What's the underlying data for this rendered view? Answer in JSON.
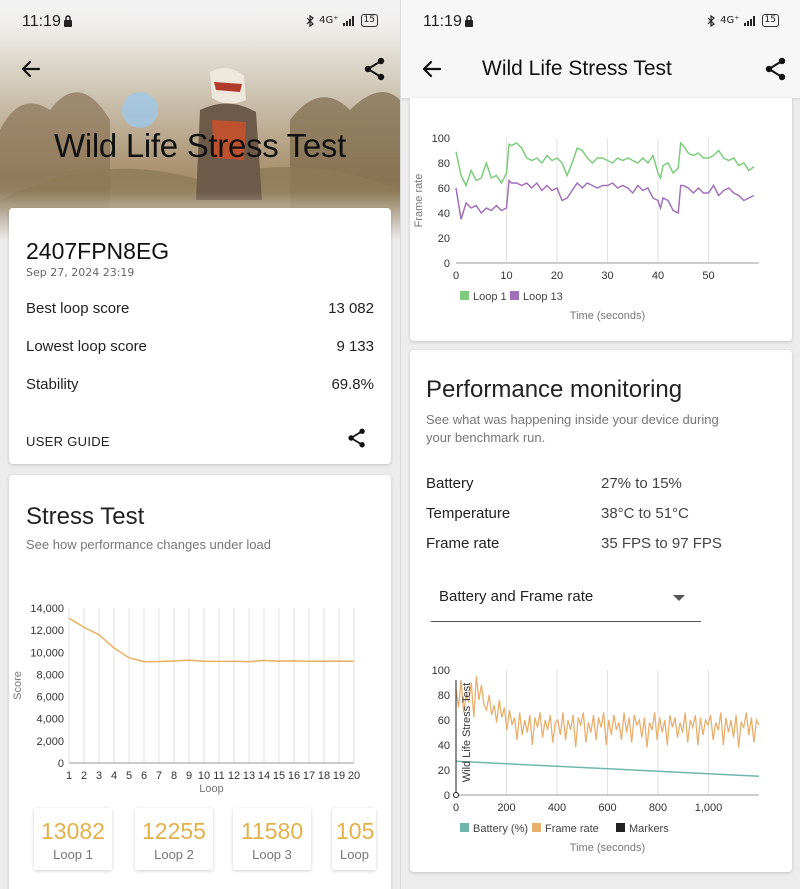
{
  "status": {
    "time": "11:19",
    "network": "4G⁺",
    "battery": "15"
  },
  "left": {
    "hero_title": "Wild Life Stress Test",
    "summary": {
      "device": "2407FPN8EG",
      "date": "Sep 27, 2024 23:19",
      "rows": [
        {
          "label": "Best loop score",
          "value": "13 082"
        },
        {
          "label": "Lowest loop score",
          "value": "9 133"
        },
        {
          "label": "Stability",
          "value": "69.8%"
        }
      ],
      "user_guide": "USER GUIDE"
    },
    "stress": {
      "title": "Stress Test",
      "subtitle": "See how performance changes under load"
    },
    "loops": [
      {
        "value": "13082",
        "label": "Loop 1"
      },
      {
        "value": "12255",
        "label": "Loop 2"
      },
      {
        "value": "11580",
        "label": "Loop 3"
      },
      {
        "value": "105",
        "label": "Loop"
      }
    ]
  },
  "right": {
    "app_title": "Wild Life Stress Test",
    "perf": {
      "title": "Performance monitoring",
      "subtitle_1": "See what was happening inside your device during",
      "subtitle_2": "your benchmark run.",
      "rows": [
        {
          "label": "Battery",
          "value": "27% to 15%"
        },
        {
          "label": "Temperature",
          "value": "38°C to 51°C"
        },
        {
          "label": "Frame rate",
          "value": "35 FPS to 97 FPS"
        }
      ],
      "dropdown": "Battery and Frame rate"
    }
  },
  "colors": {
    "score_line": "#e8b46a",
    "loop1": "#7dcb7d",
    "loop13": "#a070b8",
    "battery": "#6fb7ad",
    "framerate": "#e8b06e",
    "markers": "#222222",
    "loop_value": "#e4b04a"
  },
  "chart_data": [
    {
      "type": "line",
      "ylabel": "Score",
      "xlabel": "Loop",
      "x": [
        1,
        2,
        3,
        4,
        5,
        6,
        7,
        8,
        9,
        10,
        11,
        12,
        13,
        14,
        15,
        16,
        17,
        18,
        19,
        20
      ],
      "y_ticks": [
        "0",
        "2,000",
        "4,000",
        "6,000",
        "8,000",
        "10,000",
        "12,000",
        "14,000"
      ],
      "ylim": [
        0,
        14000
      ],
      "series": [
        {
          "values": [
            13082,
            12255,
            11580,
            10400,
            9500,
            9150,
            9160,
            9220,
            9290,
            9200,
            9180,
            9190,
            9150,
            9260,
            9200,
            9230,
            9190,
            9200,
            9210,
            9190
          ]
        }
      ],
      "grid": "vertical"
    },
    {
      "type": "line",
      "ylabel": "Frame rate",
      "xlabel": "Time (seconds)",
      "x_ticks": [
        "0",
        "10",
        "20",
        "30",
        "40",
        "50"
      ],
      "y_ticks": [
        "0",
        "20",
        "40",
        "60",
        "80",
        "100"
      ],
      "xlim": [
        0,
        60
      ],
      "ylim": [
        0,
        100
      ],
      "legend": "bottom-left",
      "series": [
        {
          "name": "Loop 1",
          "x": [
            0,
            1,
            2,
            3,
            4,
            5,
            6,
            7,
            8,
            9,
            10,
            10.5,
            11,
            12,
            13,
            14,
            15,
            16,
            17,
            18,
            19,
            20,
            21,
            22,
            23,
            24,
            25,
            26,
            27,
            28,
            29,
            30,
            31,
            32,
            33,
            34,
            35,
            36,
            37,
            38,
            39,
            40,
            40.5,
            41,
            42,
            43,
            44,
            44.5,
            45,
            46,
            47,
            48,
            49,
            50,
            51,
            52,
            53,
            54,
            55,
            56,
            57,
            58,
            59
          ],
          "values": [
            89,
            70,
            62,
            74,
            66,
            68,
            80,
            68,
            70,
            64,
            72,
            95,
            94,
            96,
            92,
            84,
            82,
            84,
            80,
            86,
            82,
            84,
            80,
            70,
            80,
            92,
            90,
            84,
            80,
            84,
            84,
            82,
            80,
            84,
            82,
            84,
            82,
            80,
            84,
            80,
            86,
            72,
            68,
            78,
            80,
            72,
            76,
            96,
            94,
            88,
            86,
            88,
            84,
            84,
            86,
            90,
            84,
            82,
            84,
            78,
            80,
            74,
            77
          ]
        },
        {
          "name": "Loop 13",
          "x": [
            0,
            1,
            2,
            3,
            4,
            5,
            6,
            7,
            8,
            9,
            10,
            10.5,
            11,
            12,
            13,
            14,
            15,
            16,
            17,
            18,
            19,
            20,
            21,
            22,
            23,
            24,
            25,
            26,
            27,
            28,
            29,
            30,
            31,
            32,
            33,
            34,
            35,
            36,
            37,
            38,
            39,
            40,
            40.5,
            41,
            42,
            43,
            44,
            44.5,
            45,
            46,
            47,
            48,
            49,
            50,
            51,
            52,
            53,
            54,
            55,
            56,
            57,
            58,
            59
          ],
          "values": [
            60,
            35,
            48,
            44,
            46,
            40,
            44,
            42,
            46,
            42,
            44,
            66,
            64,
            64,
            62,
            64,
            60,
            64,
            58,
            62,
            58,
            60,
            50,
            52,
            58,
            64,
            60,
            64,
            62,
            60,
            62,
            62,
            64,
            60,
            62,
            60,
            56,
            62,
            58,
            60,
            52,
            50,
            44,
            52,
            50,
            42,
            40,
            62,
            62,
            60,
            56,
            60,
            56,
            56,
            62,
            54,
            58,
            60,
            56,
            54,
            50,
            52,
            54
          ]
        }
      ]
    },
    {
      "type": "line",
      "ylabel": "Wild Life Stress Test",
      "xlabel": "Time (seconds)",
      "x_ticks": [
        "0",
        "200",
        "400",
        "600",
        "800",
        "1,000"
      ],
      "y_ticks": [
        "0",
        "20",
        "40",
        "60",
        "80",
        "100"
      ],
      "xlim": [
        0,
        1200
      ],
      "ylim": [
        0,
        100
      ],
      "legend": "bottom-left",
      "series": [
        {
          "name": "Battery (%)",
          "x": [
            0,
            1200
          ],
          "values": [
            27,
            15
          ]
        },
        {
          "name": "Frame rate",
          "x_range": [
            0,
            1200
          ],
          "values": [
            85,
            70,
            92,
            66,
            80,
            74,
            90,
            62,
            95,
            76,
            88,
            72,
            68,
            80,
            64,
            72,
            58,
            76,
            62,
            70,
            52,
            68,
            56,
            62,
            44,
            66,
            48,
            60,
            50,
            64,
            40,
            62,
            54,
            66,
            46,
            60,
            52,
            64,
            42,
            58,
            60,
            48,
            66,
            44,
            60,
            52,
            64,
            38,
            62,
            56,
            66,
            42,
            58,
            50,
            64,
            44,
            62,
            54,
            66,
            40,
            60,
            48,
            64,
            52,
            58,
            44,
            66,
            50,
            62,
            42,
            64,
            56,
            60,
            46,
            62,
            38,
            58,
            52,
            66,
            44,
            62,
            50,
            60,
            40,
            64,
            54,
            62,
            46,
            58,
            50,
            66,
            42,
            60,
            54,
            64,
            40,
            62,
            48,
            60,
            56,
            64,
            44,
            58,
            52,
            66,
            40,
            62,
            50,
            60,
            46,
            64,
            38,
            58,
            54,
            66,
            48,
            62,
            42,
            60,
            56
          ]
        },
        {
          "name": "Markers",
          "x": [],
          "values": []
        }
      ]
    }
  ]
}
